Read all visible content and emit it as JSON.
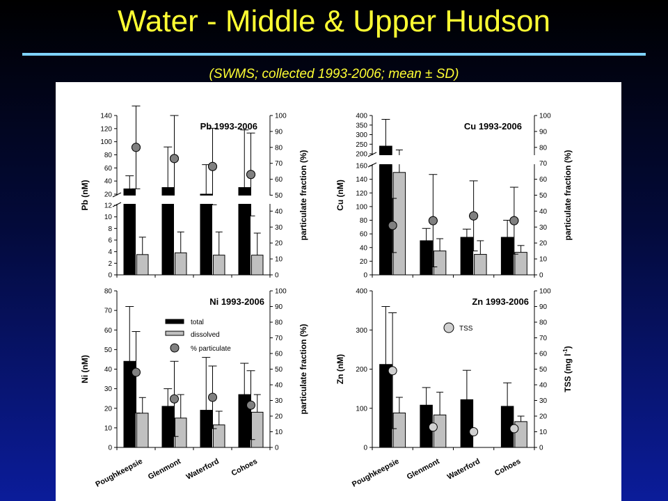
{
  "slide": {
    "title": "Water - Middle & Upper Hudson",
    "subtitle": "(SWMS; collected 1993-2006; mean ± SD)"
  },
  "colors": {
    "total": "#000000",
    "dissolved": "#c0c0c0",
    "particulate": "#808080",
    "tss": "#d0d0d0",
    "title": "#ffff33",
    "rule": "#7fd3ff"
  },
  "chart_data": [
    {
      "type": "bar",
      "id": "pb",
      "title": "Pb 1993-2006",
      "categories": [
        "Poughkeepsie",
        "Glenmont",
        "Waterford",
        "Cohoes"
      ],
      "ylabel": "Pb (nM)",
      "y2label": "particulate fraction (%)",
      "axis_break": true,
      "ylim_lower": [
        0,
        12
      ],
      "ylim_upper": [
        20,
        140
      ],
      "yticks_lower": [
        0,
        2,
        4,
        6,
        8,
        10,
        12
      ],
      "yticks_upper": [
        20,
        40,
        60,
        80,
        100,
        120,
        140
      ],
      "y2lim": [
        0,
        100
      ],
      "y2ticks": [
        0,
        10,
        20,
        30,
        40,
        50,
        60,
        70,
        80,
        90,
        100
      ],
      "series": [
        {
          "name": "total",
          "values": [
            28,
            30,
            20,
            30
          ],
          "sd": [
            20,
            62,
            45,
            88
          ]
        },
        {
          "name": "dissolved",
          "values": [
            3.5,
            3.8,
            3.4,
            3.4
          ],
          "sd": [
            3,
            3.6,
            4,
            3.8
          ]
        },
        {
          "name": "% particulate",
          "axis": "right",
          "values": [
            80,
            73,
            68,
            63
          ],
          "sd": [
            26,
            27,
            24,
            26
          ]
        }
      ]
    },
    {
      "type": "bar",
      "id": "cu",
      "title": "Cu 1993-2006",
      "categories": [
        "Poughkeepsie",
        "Glenmont",
        "Waterford",
        "Cohoes"
      ],
      "ylabel": "Cu (nM)",
      "y2label": "particulate fraction (%)",
      "axis_break": true,
      "ylim_lower": [
        0,
        160
      ],
      "ylim_upper": [
        200,
        400
      ],
      "yticks_lower": [
        0,
        20,
        40,
        60,
        80,
        100,
        120,
        140,
        160
      ],
      "yticks_upper": [
        200,
        250,
        300,
        350,
        400
      ],
      "y2lim": [
        0,
        100
      ],
      "y2ticks": [
        0,
        10,
        20,
        30,
        40,
        50,
        60,
        70,
        80,
        90,
        100
      ],
      "series": [
        {
          "name": "total",
          "values": [
            240,
            50,
            55,
            55
          ],
          "sd": [
            140,
            18,
            12,
            25
          ]
        },
        {
          "name": "dissolved",
          "values": [
            150,
            35,
            30,
            33
          ],
          "sd": [
            70,
            18,
            20,
            10
          ]
        },
        {
          "name": "% particulate",
          "axis": "right",
          "values": [
            31,
            34,
            37,
            34
          ],
          "sd": [
            17,
            29,
            22,
            21
          ]
        }
      ]
    },
    {
      "type": "bar",
      "id": "ni",
      "title": "Ni 1993-2006",
      "categories": [
        "Poughkeepsie",
        "Glenmont",
        "Waterford",
        "Cohoes"
      ],
      "ylabel": "Ni (nM)",
      "y2label": "particulate fraction (%)",
      "ylim": [
        0,
        80
      ],
      "yticks": [
        0,
        10,
        20,
        30,
        40,
        50,
        60,
        70,
        80
      ],
      "y2lim": [
        0,
        100
      ],
      "y2ticks": [
        0,
        10,
        20,
        30,
        40,
        50,
        60,
        70,
        80,
        90,
        100
      ],
      "legend": {
        "placement": "upper-left",
        "entries": [
          "total",
          "dissolved",
          "% particulate"
        ]
      },
      "series": [
        {
          "name": "total",
          "values": [
            44,
            21,
            19,
            27
          ],
          "sd": [
            28,
            9,
            27,
            16
          ]
        },
        {
          "name": "dissolved",
          "values": [
            17.5,
            15,
            11.5,
            18
          ],
          "sd": [
            8,
            12,
            7,
            9
          ]
        },
        {
          "name": "% particulate",
          "axis": "right",
          "values": [
            48,
            31,
            32,
            27
          ],
          "sd": [
            26,
            24,
            20,
            22
          ]
        }
      ]
    },
    {
      "type": "bar",
      "id": "zn",
      "title": "Zn 1993-2006",
      "categories": [
        "Poughkeepsie",
        "Glenmont",
        "Waterford",
        "Cohoes"
      ],
      "ylabel": "Zn (nM)",
      "y2label": "TSS (mg l-1)",
      "ylim": [
        0,
        400
      ],
      "yticks": [
        0,
        100,
        200,
        300,
        400
      ],
      "y2lim": [
        0,
        100
      ],
      "y2ticks": [
        0,
        10,
        20,
        30,
        40,
        50,
        60,
        70,
        80,
        90,
        100
      ],
      "legend": {
        "placement": "upper-center",
        "entries": [
          "TSS"
        ]
      },
      "series": [
        {
          "name": "total",
          "values": [
            212,
            108,
            122,
            105
          ],
          "sd": [
            148,
            45,
            75,
            60
          ]
        },
        {
          "name": "dissolved",
          "values": [
            88,
            83,
            0,
            66
          ],
          "sd": [
            40,
            58,
            0,
            14
          ]
        },
        {
          "name": "TSS",
          "axis": "right",
          "values": [
            49,
            13,
            10,
            12
          ],
          "sd": [
            37,
            0,
            0,
            0
          ]
        }
      ]
    }
  ]
}
